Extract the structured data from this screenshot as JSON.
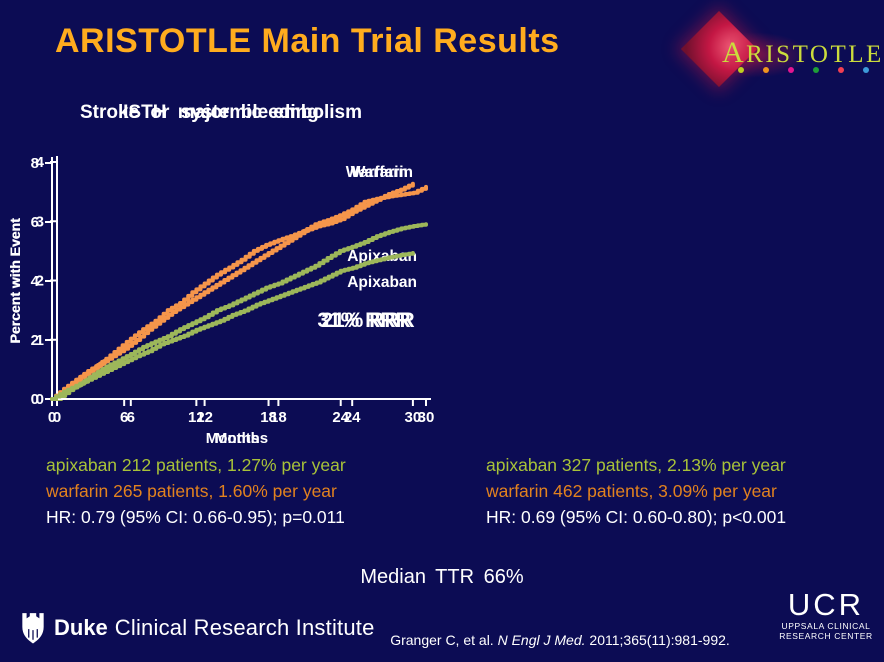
{
  "slide": {
    "title": "ARISTOTLE Main Trial Results",
    "background_color": "#0C0C54",
    "title_color": "#FFAC1E"
  },
  "aristotle_logo": {
    "text": "ARISTOTLE",
    "first_letter": "A",
    "rest": "RISTOTLE",
    "diamond_color": "#C41744",
    "text_color": "#CBDC3C",
    "dot_colors": [
      "#BFCF20",
      "#F0941E",
      "#E31690",
      "#1F9E38",
      "#F23F52",
      "#3D9AD8"
    ]
  },
  "chart_data": [
    {
      "type": "line",
      "title": "Stroke or systemic embolism",
      "xlabel": "Months",
      "ylabel": "Percent with Event",
      "xlim": [
        0,
        30
      ],
      "ylim": [
        0,
        4
      ],
      "xticks": [
        0,
        6,
        12,
        18,
        24,
        30
      ],
      "yticks": [
        0,
        1,
        2,
        3,
        4
      ],
      "annotation": "21% RRR",
      "legend_position": "inline-right",
      "grid": false,
      "x": [
        0,
        1,
        2,
        3,
        4,
        5,
        6,
        7,
        8,
        9,
        10,
        11,
        12,
        13,
        14,
        15,
        16,
        17,
        18,
        19,
        20,
        21,
        22,
        23,
        24,
        25,
        26,
        27,
        28,
        29,
        30
      ],
      "series": [
        {
          "name": "Warfarin",
          "color": "#F5954B",
          "values": [
            0,
            0.22,
            0.38,
            0.52,
            0.68,
            0.85,
            1.02,
            1.18,
            1.32,
            1.5,
            1.62,
            1.8,
            1.95,
            2.1,
            2.22,
            2.35,
            2.5,
            2.6,
            2.68,
            2.75,
            2.83,
            2.95,
            3.02,
            3.1,
            3.2,
            3.33,
            3.38,
            3.42,
            3.45,
            3.48,
            3.58
          ]
        },
        {
          "name": "Apixaban",
          "color": "#9DB75A",
          "values": [
            0,
            0.15,
            0.28,
            0.42,
            0.55,
            0.65,
            0.76,
            0.88,
            0.97,
            1.06,
            1.18,
            1.28,
            1.38,
            1.5,
            1.58,
            1.68,
            1.78,
            1.88,
            1.95,
            2.05,
            2.15,
            2.25,
            2.38,
            2.5,
            2.57,
            2.65,
            2.75,
            2.82,
            2.88,
            2.92,
            2.95
          ]
        }
      ],
      "stats": {
        "apixaban": "apixaban 212 patients, 1.27% per year",
        "warfarin": "warfarin 265 patients, 1.60% per year",
        "hr": "HR: 0.79 (95% CI: 0.66-0.95); p=0.011"
      }
    },
    {
      "type": "line",
      "title": "ISTH major bleeding",
      "xlabel": "Months",
      "ylabel": "Percent with Event",
      "xlim": [
        0,
        30
      ],
      "ylim": [
        0,
        8
      ],
      "xticks": [
        0,
        6,
        12,
        18,
        24,
        30
      ],
      "yticks": [
        0,
        2,
        4,
        6,
        8
      ],
      "annotation": "31% RRR",
      "legend_position": "inline-right",
      "grid": false,
      "x": [
        0,
        1,
        2,
        3,
        4,
        5,
        6,
        7,
        8,
        9,
        10,
        11,
        12,
        13,
        14,
        15,
        16,
        17,
        18,
        19,
        20,
        21,
        22,
        23,
        24,
        25,
        26,
        27,
        28,
        29,
        30
      ],
      "series": [
        {
          "name": "Warfarin",
          "color": "#F5954B",
          "values": [
            0,
            0.35,
            0.65,
            0.95,
            1.2,
            1.45,
            1.7,
            2.0,
            2.35,
            2.65,
            2.95,
            3.2,
            3.45,
            3.7,
            3.95,
            4.2,
            4.45,
            4.7,
            4.95,
            5.2,
            5.45,
            5.7,
            5.85,
            5.95,
            6.1,
            6.35,
            6.55,
            6.75,
            6.95,
            7.1,
            7.3
          ]
        },
        {
          "name": "Apixaban",
          "color": "#9DB75A",
          "values": [
            0,
            0.25,
            0.45,
            0.65,
            0.85,
            1.05,
            1.25,
            1.45,
            1.62,
            1.85,
            2.0,
            2.15,
            2.35,
            2.5,
            2.65,
            2.85,
            3.0,
            3.2,
            3.35,
            3.5,
            3.65,
            3.8,
            3.95,
            4.15,
            4.35,
            4.45,
            4.6,
            4.7,
            4.8,
            4.88,
            4.95
          ]
        }
      ],
      "stats": {
        "apixaban": "apixaban 327 patients, 2.13% per year",
        "warfarin": "warfarin 462 patients, 3.09% per year",
        "hr": "HR: 0.69 (95% CI: 0.60-0.80); p<0.001"
      }
    }
  ],
  "footer": {
    "median_ttr": "Median TTR 66%",
    "citation_prefix": "Granger C, et al. ",
    "citation_journal": "N Engl J Med.",
    "citation_suffix": " 2011;365(11):981-992.",
    "duke_bold": "Duke",
    "duke_rest": "Clinical Research Institute",
    "ucr_acronym": "UCR",
    "ucr_line1": "UPPSALA CLINICAL",
    "ucr_line2": "RESEARCH CENTER"
  },
  "colors": {
    "apixaban_text": "#A8C239",
    "warfarin_text": "#E2821F",
    "axis_text": "#FFFFFF"
  }
}
